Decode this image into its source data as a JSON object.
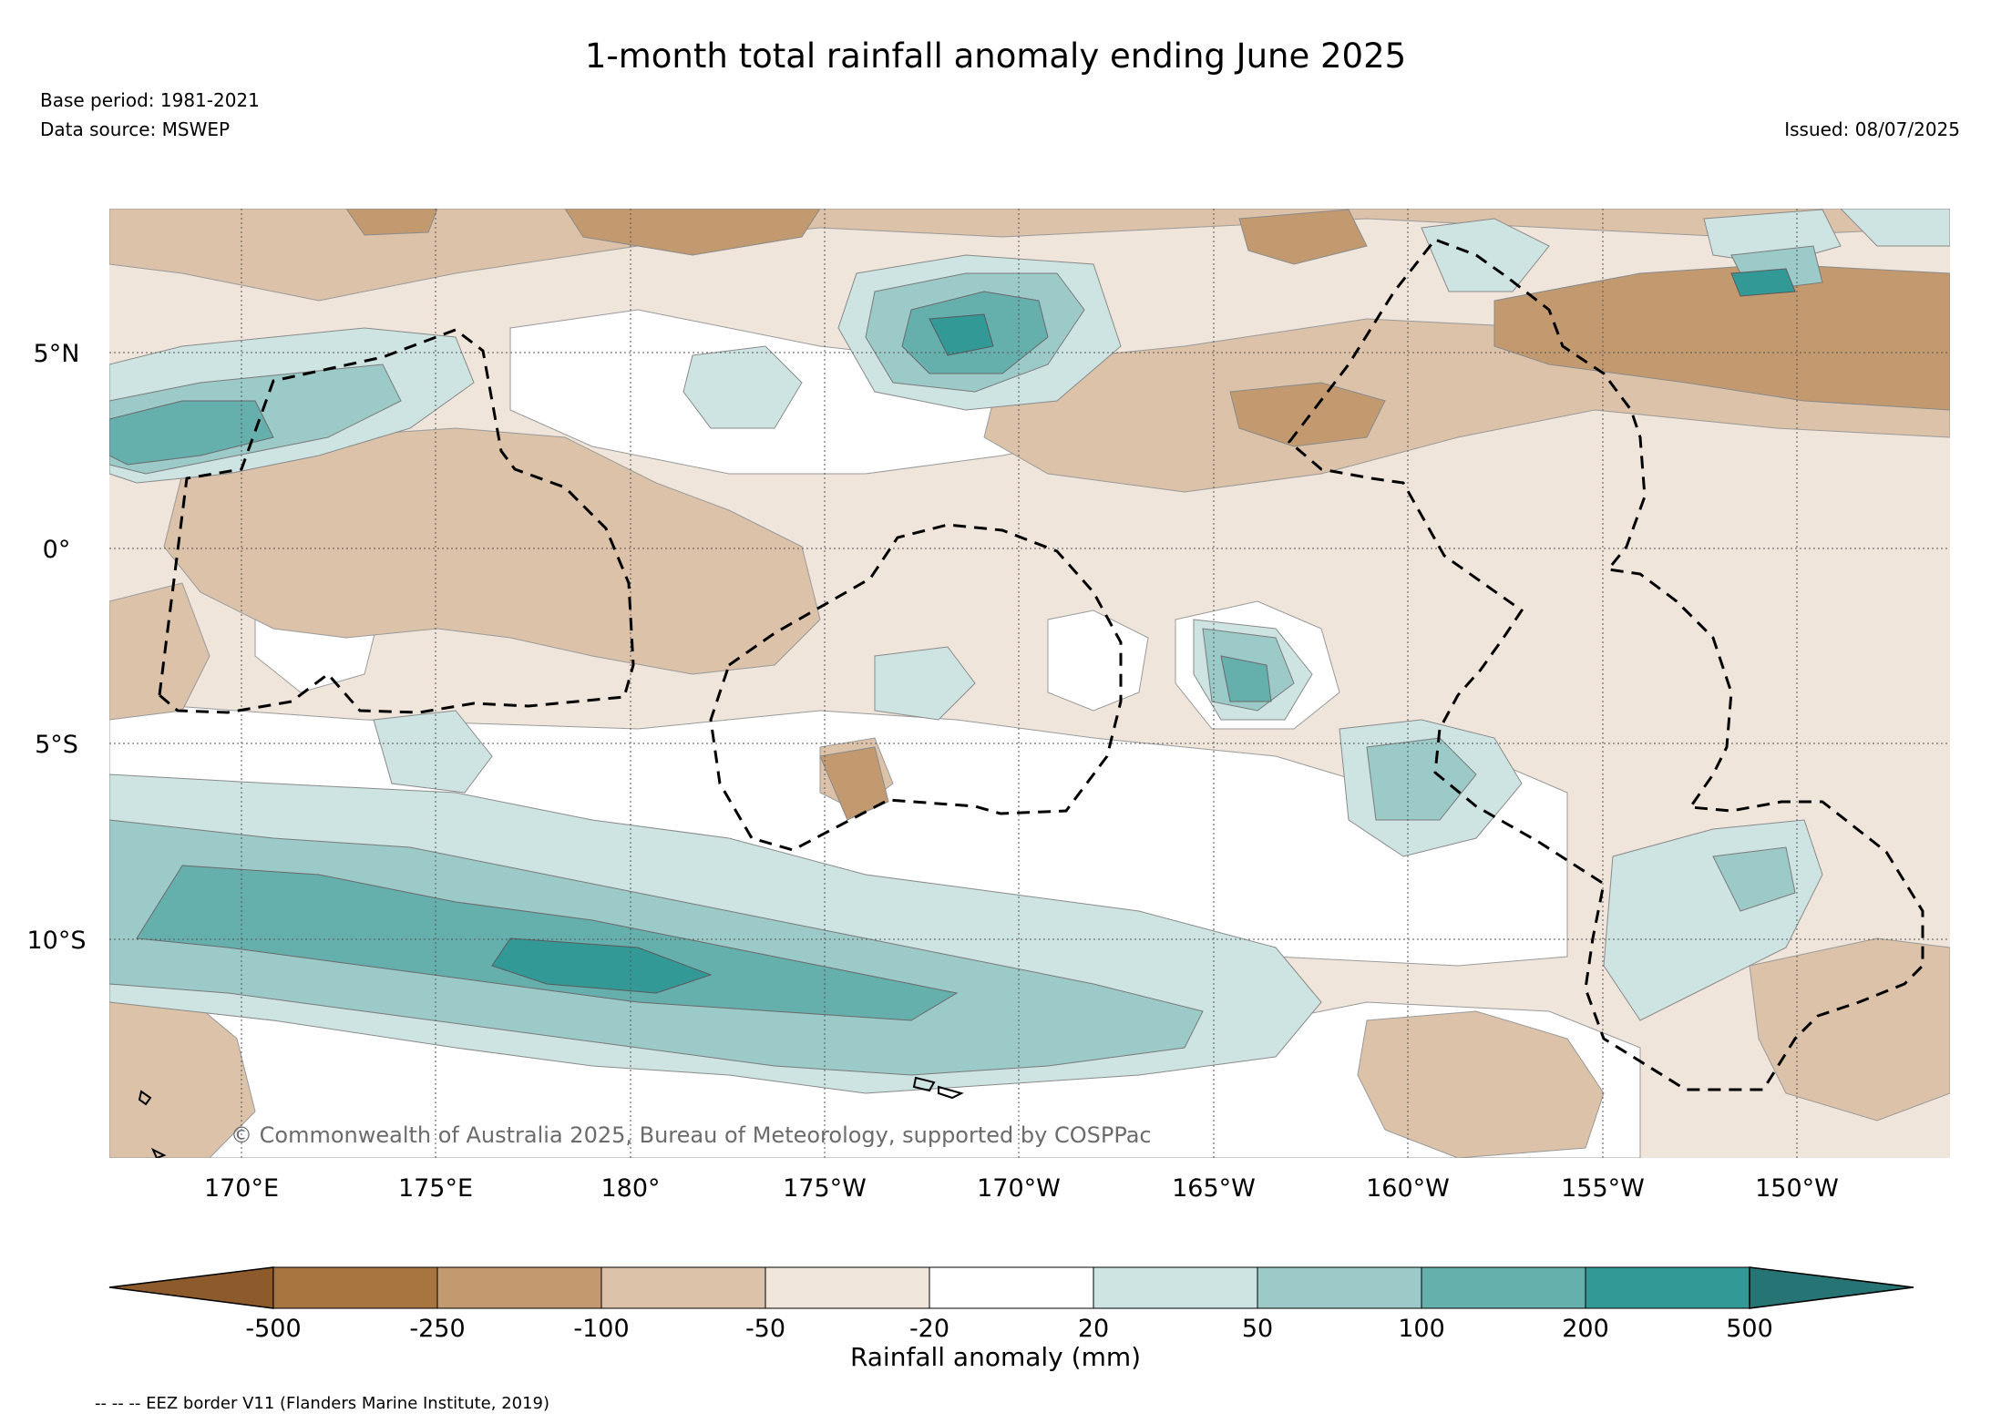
{
  "title": "1-month total rainfall anomaly ending June 2025",
  "base_period": "Base period: 1981-2021",
  "data_source": "Data source: MSWEP",
  "issued": "Issued: 08/07/2025",
  "copyright": "© Commonwealth of Australia 2025, Bureau of Meteorology, supported by COSPPac",
  "lat_labels": [
    "5°N",
    "0°",
    "5°S",
    "10°S"
  ],
  "lon_labels": [
    "170°E",
    "175°E",
    "180°",
    "175°W",
    "170°W",
    "165°W",
    "160°W",
    "155°W",
    "150°W"
  ],
  "colorbar": {
    "label": "Rainfall anomaly (mm)",
    "ticks": [
      "-500",
      "-250",
      "-100",
      "-50",
      "-20",
      "20",
      "50",
      "100",
      "200",
      "500"
    ],
    "colors": [
      "#8c5a2b",
      "#a87440",
      "#c39a70",
      "#dbc2a8",
      "#f0e5da",
      "#ffffff",
      "#cde4e3",
      "#9ccac8",
      "#65afad",
      "#339996",
      "#267574"
    ]
  },
  "eez_legend": "-- -- -- EEZ border V11 (Flanders Marine Institute, 2019)",
  "map": {
    "lon_range": [
      166.5,
      212.2
    ],
    "lat_range": [
      -15.3,
      8.7
    ],
    "grid_lons": [
      170,
      175,
      180,
      185,
      190,
      195,
      200,
      205,
      210
    ],
    "grid_lats": [
      5,
      0,
      -5,
      -10
    ]
  }
}
